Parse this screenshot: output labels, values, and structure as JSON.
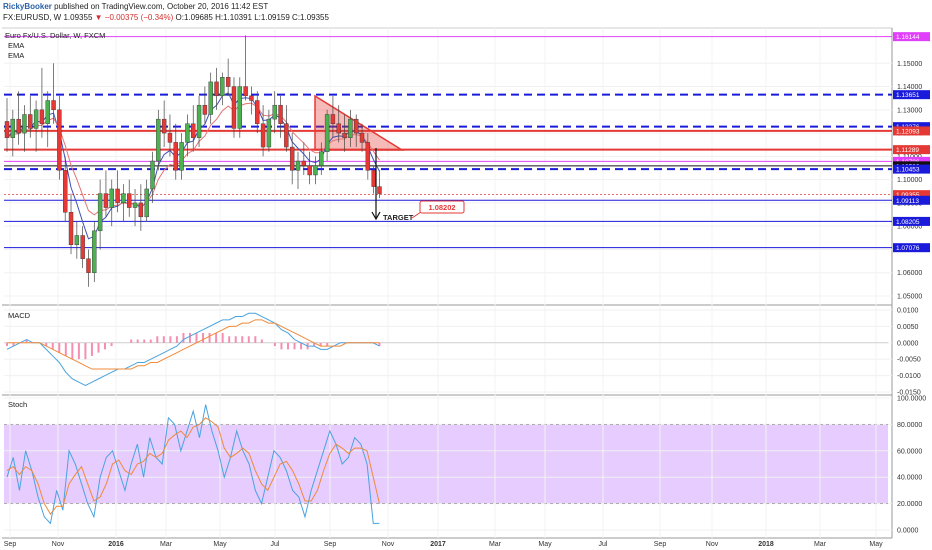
{
  "header": {
    "user": "RickyBooker",
    "published": "published on TradingView.com, October 20, 2016 11:42 EST",
    "symbol": "FX:EURUSD, W",
    "last": "1.09355",
    "change": "▼ −0.00375 (−0.34%)",
    "ohlc": "O:1.09685 H:1.10391 L:1.09159 C:1.09355"
  },
  "chart_title": "Euro Fx/U.S. Dollar, W, FXCM",
  "indicators": {
    "ema1": "EMA",
    "ema2": "EMA",
    "macd": "MACD",
    "stoch": "Stoch"
  },
  "annotations": {
    "target_label": "TARGET",
    "target_price": "1.08202"
  },
  "colors": {
    "up": "#4caf50",
    "down": "#e53935",
    "blue_line": "#1a1adb",
    "red_line": "#e53935",
    "magenta": "#e040fb",
    "stoch_band": "#e6ccff",
    "ema_blue": "#3f51b5",
    "ema_pink": "#e57373",
    "macd_blue": "#4aa3df",
    "macd_orange": "#ef8a3a",
    "macd_hist": "#f48fb1"
  },
  "chart_data": {
    "type": "candlestick",
    "price_axis": {
      "min": 1.05,
      "max": 1.16,
      "ticks": [
        "1.15000",
        "1.14000",
        "1.13000",
        "1.12000",
        "1.11000",
        "1.10000",
        "1.09000",
        "1.08000",
        "1.07000",
        "1.06000",
        "1.05000"
      ]
    },
    "macd_axis": {
      "min": -0.015,
      "max": 0.01,
      "ticks": [
        "0.0100",
        "0.0050",
        "0.0000",
        "-0.0050",
        "-0.0100",
        "-0.0150"
      ]
    },
    "stoch_axis": {
      "min": 0,
      "max": 100,
      "ticks": [
        "100.0000",
        "80.0000",
        "60.0000",
        "40.0000",
        "20.0000",
        "0.0000"
      ]
    },
    "time_labels": [
      "Sep",
      "Nov",
      "2016",
      "Mar",
      "May",
      "Jul",
      "Sep",
      "Nov",
      "2017",
      "Mar",
      "May",
      "Jul",
      "Sep",
      "Nov",
      "2018",
      "Mar",
      "May"
    ],
    "levels": [
      {
        "price": 1.16144,
        "label": "1.16144",
        "color": "#e040fb",
        "style": "solid"
      },
      {
        "price": 1.13651,
        "label": "1.13651",
        "color": "#1a1adb",
        "style": "dashed"
      },
      {
        "price": 1.12276,
        "label": "1.12276",
        "color": "#1a1adb",
        "style": "dashed"
      },
      {
        "price": 1.12093,
        "label": "1.12093",
        "color": "#e53935",
        "style": "solid"
      },
      {
        "price": 1.11289,
        "label": "1.11289",
        "color": "#e53935",
        "style": "solid"
      },
      {
        "price": 1.10786,
        "label": "1.10786",
        "color": "#e040fb",
        "style": "solid"
      },
      {
        "price": 1.10593,
        "label": "1.10593",
        "color": "#111111",
        "style": "solid"
      },
      {
        "price": 1.10453,
        "label": "1.10453",
        "color": "#1a1adb",
        "style": "dashed"
      },
      {
        "price": 1.09355,
        "label": "1.09355",
        "color": "#e53935",
        "style": "dotted"
      },
      {
        "price": 1.09113,
        "label": "1.09113",
        "color": "#1a1adb",
        "style": "solid"
      },
      {
        "price": 1.08205,
        "label": "1.08205",
        "color": "#1a1adb",
        "style": "solid"
      },
      {
        "price": 1.07076,
        "label": "1.07076",
        "color": "#1a1adb",
        "style": "solid"
      }
    ],
    "candles": [
      [
        1.125,
        1.135,
        1.112,
        1.118
      ],
      [
        1.118,
        1.13,
        1.11,
        1.126
      ],
      [
        1.126,
        1.138,
        1.115,
        1.12
      ],
      [
        1.12,
        1.132,
        1.112,
        1.128
      ],
      [
        1.128,
        1.136,
        1.118,
        1.122
      ],
      [
        1.122,
        1.134,
        1.112,
        1.13
      ],
      [
        1.13,
        1.148,
        1.118,
        1.124
      ],
      [
        1.124,
        1.138,
        1.114,
        1.134
      ],
      [
        1.134,
        1.15,
        1.124,
        1.13
      ],
      [
        1.13,
        1.136,
        1.1,
        1.104
      ],
      [
        1.104,
        1.11,
        1.082,
        1.086
      ],
      [
        1.086,
        1.094,
        1.068,
        1.072
      ],
      [
        1.072,
        1.082,
        1.066,
        1.076
      ],
      [
        1.076,
        1.08,
        1.062,
        1.066
      ],
      [
        1.066,
        1.07,
        1.054,
        1.06
      ],
      [
        1.06,
        1.082,
        1.056,
        1.078
      ],
      [
        1.078,
        1.1,
        1.07,
        1.094
      ],
      [
        1.094,
        1.104,
        1.084,
        1.088
      ],
      [
        1.088,
        1.1,
        1.08,
        1.096
      ],
      [
        1.096,
        1.104,
        1.086,
        1.09
      ],
      [
        1.09,
        1.098,
        1.082,
        1.094
      ],
      [
        1.094,
        1.1,
        1.084,
        1.088
      ],
      [
        1.088,
        1.096,
        1.08,
        1.09
      ],
      [
        1.09,
        1.098,
        1.078,
        1.084
      ],
      [
        1.084,
        1.1,
        1.082,
        1.096
      ],
      [
        1.096,
        1.112,
        1.09,
        1.108
      ],
      [
        1.108,
        1.13,
        1.104,
        1.126
      ],
      [
        1.126,
        1.134,
        1.114,
        1.12
      ],
      [
        1.12,
        1.128,
        1.11,
        1.116
      ],
      [
        1.116,
        1.124,
        1.1,
        1.104
      ],
      [
        1.104,
        1.12,
        1.1,
        1.116
      ],
      [
        1.116,
        1.128,
        1.11,
        1.124
      ],
      [
        1.124,
        1.132,
        1.112,
        1.118
      ],
      [
        1.118,
        1.136,
        1.114,
        1.132
      ],
      [
        1.132,
        1.14,
        1.124,
        1.128
      ],
      [
        1.128,
        1.146,
        1.124,
        1.142
      ],
      [
        1.142,
        1.148,
        1.13,
        1.136
      ],
      [
        1.136,
        1.146,
        1.132,
        1.144
      ],
      [
        1.144,
        1.152,
        1.136,
        1.14
      ],
      [
        1.14,
        1.144,
        1.118,
        1.122
      ],
      [
        1.122,
        1.144,
        1.118,
        1.14
      ],
      [
        1.14,
        1.162,
        1.134,
        1.136
      ],
      [
        1.136,
        1.14,
        1.128,
        1.134
      ],
      [
        1.134,
        1.138,
        1.12,
        1.124
      ],
      [
        1.124,
        1.132,
        1.11,
        1.114
      ],
      [
        1.114,
        1.13,
        1.112,
        1.126
      ],
      [
        1.126,
        1.138,
        1.12,
        1.132
      ],
      [
        1.132,
        1.136,
        1.118,
        1.124
      ],
      [
        1.124,
        1.132,
        1.112,
        1.114
      ],
      [
        1.114,
        1.12,
        1.098,
        1.104
      ],
      [
        1.104,
        1.112,
        1.096,
        1.108
      ],
      [
        1.108,
        1.116,
        1.102,
        1.106
      ],
      [
        1.106,
        1.112,
        1.098,
        1.102
      ],
      [
        1.102,
        1.11,
        1.098,
        1.106
      ],
      [
        1.106,
        1.116,
        1.102,
        1.112
      ],
      [
        1.112,
        1.13,
        1.108,
        1.128
      ],
      [
        1.128,
        1.136,
        1.118,
        1.124
      ],
      [
        1.124,
        1.132,
        1.116,
        1.12
      ],
      [
        1.12,
        1.128,
        1.112,
        1.118
      ],
      [
        1.118,
        1.13,
        1.114,
        1.126
      ],
      [
        1.126,
        1.128,
        1.114,
        1.12
      ],
      [
        1.12,
        1.124,
        1.112,
        1.116
      ],
      [
        1.116,
        1.12,
        1.1,
        1.104
      ],
      [
        1.104,
        1.106,
        1.094,
        1.097
      ],
      [
        1.097,
        1.104,
        1.092,
        1.094
      ]
    ],
    "macd": {
      "macd_line": [
        -0.002,
        -0.001,
        0.0,
        0.001,
        0.0,
        0.0,
        -0.002,
        -0.004,
        -0.006,
        -0.009,
        -0.011,
        -0.012,
        -0.013,
        -0.012,
        -0.011,
        -0.01,
        -0.009,
        -0.008,
        -0.008,
        -0.007,
        -0.006,
        -0.006,
        -0.005,
        -0.004,
        -0.003,
        -0.002,
        -0.001,
        0.001,
        0.002,
        0.003,
        0.004,
        0.005,
        0.006,
        0.007,
        0.007,
        0.008,
        0.008,
        0.009,
        0.009,
        0.008,
        0.007,
        0.006,
        0.004,
        0.003,
        0.001,
        0.0,
        -0.001,
        -0.001,
        -0.002,
        -0.002,
        -0.001,
        0.0,
        0.0,
        0.0,
        0.0,
        0.0,
        0.0,
        -0.001
      ],
      "signal_line": [
        0.0,
        0.0,
        0.0,
        0.0,
        0.0,
        0.0,
        -0.001,
        -0.002,
        -0.003,
        -0.004,
        -0.005,
        -0.006,
        -0.007,
        -0.008,
        -0.008,
        -0.008,
        -0.008,
        -0.008,
        -0.008,
        -0.008,
        -0.007,
        -0.007,
        -0.006,
        -0.006,
        -0.005,
        -0.004,
        -0.003,
        -0.002,
        -0.001,
        0.0,
        0.001,
        0.002,
        0.003,
        0.004,
        0.005,
        0.005,
        0.006,
        0.006,
        0.007,
        0.007,
        0.006,
        0.006,
        0.005,
        0.004,
        0.003,
        0.002,
        0.001,
        0.0,
        -0.001,
        -0.001,
        -0.001,
        -0.001,
        0.0,
        0.0,
        0.0,
        0.0,
        0.0,
        0.0
      ],
      "histogram": [
        -0.001,
        -0.001,
        0.0,
        0.001,
        0.0,
        0.0,
        -0.001,
        -0.002,
        -0.003,
        -0.004,
        -0.005,
        -0.005,
        -0.005,
        -0.004,
        -0.003,
        -0.002,
        -0.001,
        0.0,
        0.0,
        0.001,
        0.001,
        0.001,
        0.001,
        0.002,
        0.002,
        0.002,
        0.002,
        0.003,
        0.003,
        0.003,
        0.003,
        0.003,
        0.003,
        0.003,
        0.002,
        0.002,
        0.002,
        0.002,
        0.002,
        0.001,
        0.0,
        -0.001,
        -0.002,
        -0.002,
        -0.002,
        -0.002,
        -0.002,
        -0.001,
        -0.001,
        -0.001,
        0.0,
        0.0,
        0.0,
        0.0,
        0.0,
        0.0,
        0.0,
        -0.001
      ]
    },
    "stoch": {
      "k": [
        40,
        55,
        30,
        60,
        45,
        25,
        10,
        5,
        30,
        15,
        60,
        50,
        35,
        20,
        10,
        40,
        55,
        60,
        45,
        30,
        50,
        65,
        40,
        70,
        55,
        50,
        85,
        80,
        60,
        75,
        90,
        70,
        95,
        75,
        60,
        40,
        55,
        75,
        60,
        50,
        30,
        20,
        40,
        60,
        55,
        45,
        30,
        25,
        10,
        30,
        45,
        60,
        75,
        65,
        50,
        55,
        70,
        65,
        50,
        5,
        5
      ],
      "d": [
        45,
        48,
        42,
        48,
        45,
        35,
        20,
        12,
        18,
        18,
        35,
        42,
        48,
        35,
        22,
        25,
        35,
        50,
        53,
        45,
        42,
        50,
        52,
        58,
        55,
        58,
        68,
        72,
        75,
        70,
        78,
        80,
        85,
        82,
        78,
        62,
        55,
        58,
        62,
        58,
        45,
        35,
        30,
        40,
        50,
        52,
        45,
        35,
        22,
        22,
        30,
        45,
        58,
        65,
        62,
        58,
        62,
        62,
        60,
        40,
        20
      ]
    }
  }
}
